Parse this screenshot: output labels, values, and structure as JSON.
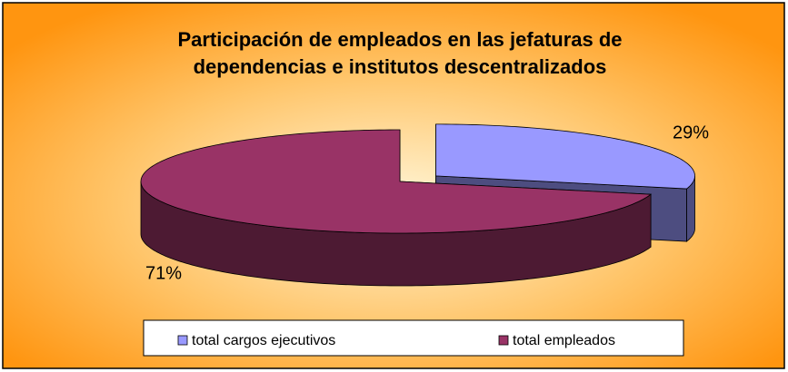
{
  "chart_data": {
    "type": "pie",
    "title": [
      "Participación de empleados en las jefaturas de",
      "dependencias e institutos descentralizados"
    ],
    "categories": [
      "total cargos ejecutivos",
      "total empleados"
    ],
    "values": [
      29,
      71
    ],
    "value_labels": [
      "29%",
      "71%"
    ],
    "colors": [
      "#9999ff",
      "#993366"
    ],
    "legend": "bottom"
  }
}
